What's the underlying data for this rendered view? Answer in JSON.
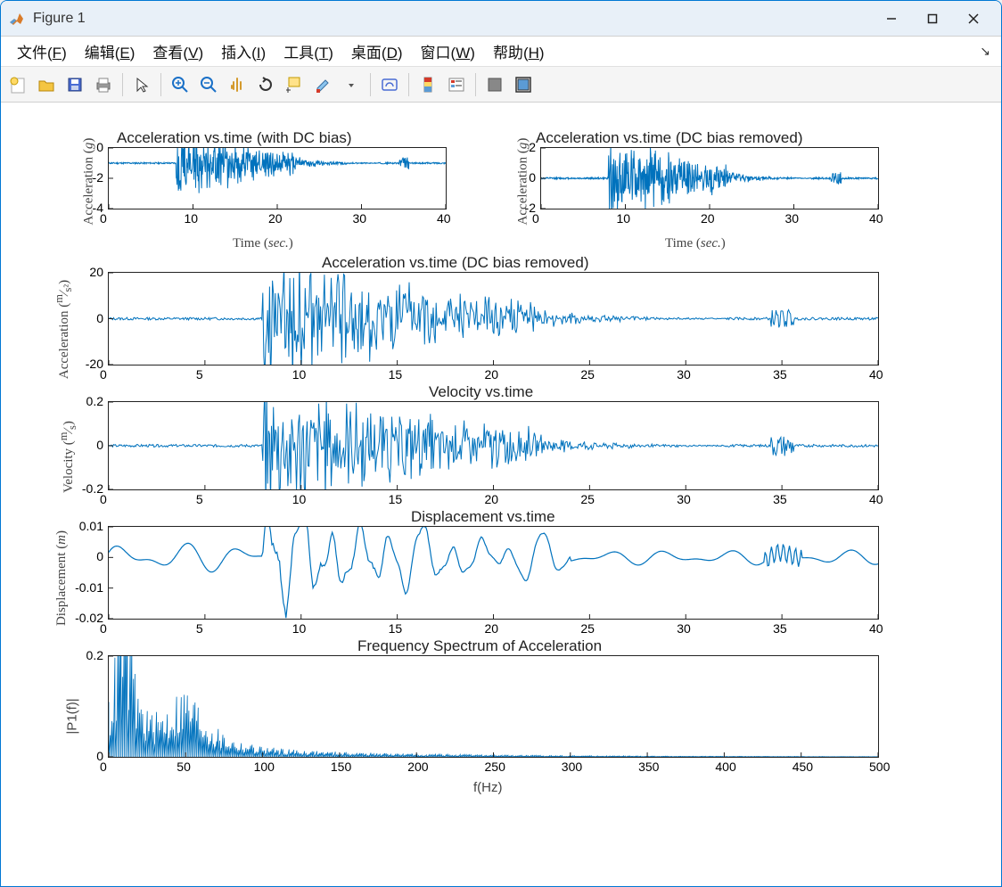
{
  "window": {
    "title": "Figure 1",
    "border_color": "#0078d4",
    "titlebar_bg": "#e8f0f8"
  },
  "menu": {
    "items": [
      {
        "label": "文件",
        "accel": "F"
      },
      {
        "label": "编辑",
        "accel": "E"
      },
      {
        "label": "查看",
        "accel": "V"
      },
      {
        "label": "插入",
        "accel": "I"
      },
      {
        "label": "工具",
        "accel": "T"
      },
      {
        "label": "桌面",
        "accel": "D"
      },
      {
        "label": "窗口",
        "accel": "W"
      },
      {
        "label": "帮助",
        "accel": "H"
      }
    ]
  },
  "charts": {
    "line_color": "#0072bd",
    "axis_color": "#222222",
    "tick_fontsize": 14,
    "title_fontsize": 17,
    "label_fontsize": 15,
    "font_family_serif": "Times New Roman, serif",
    "subplot1": {
      "title": "Acceleration vs.time (with DC bias)",
      "ylabel": "Acceleration (g)",
      "xlabel": "Time (sec.)",
      "xlim": [
        0,
        40
      ],
      "xticks": [
        0,
        10,
        20,
        30,
        40
      ],
      "ylim": [
        -4,
        0
      ],
      "yticks": [
        -4,
        -2,
        0
      ],
      "baseline": -1,
      "peaks_y": [
        -4,
        0,
        -3.8,
        -0.2,
        -3.5,
        0,
        -3,
        -0.5,
        -2.5,
        -0.5,
        -2,
        -0.7,
        -1.5,
        -0.8,
        -1.3,
        -0.9
      ],
      "burst_start": 8,
      "burst_end": 22,
      "blip_x": 35,
      "blip_amp": 0.4
    },
    "subplot2": {
      "title": "Acceleration vs.time (DC bias removed)",
      "ylabel": "Acceleration (g)",
      "xlabel": "Time (sec.)",
      "xlim": [
        0,
        40
      ],
      "xticks": [
        0,
        10,
        20,
        30,
        40
      ],
      "ylim": [
        -2,
        2
      ],
      "yticks": [
        -2,
        0,
        2
      ],
      "baseline": 0,
      "burst_start": 8,
      "burst_end": 22,
      "amp_max": 2.8,
      "blip_x": 35,
      "blip_amp": 0.4
    },
    "subplot3": {
      "title": "Acceleration vs.time (DC bias removed)",
      "ylabel": "Acceleration (m/s²)",
      "xlim": [
        0,
        40
      ],
      "xticks": [
        0,
        5,
        10,
        15,
        20,
        25,
        30,
        35,
        40
      ],
      "ylim": [
        -20,
        20
      ],
      "yticks": [
        -20,
        0,
        20
      ],
      "baseline": 0,
      "burst_start": 8,
      "burst_end": 22,
      "amp_max": 28,
      "blip_x": 35,
      "blip_amp": 4
    },
    "subplot4": {
      "title": "Velocity vs.time",
      "ylabel": "Velocity (m/s)",
      "xlim": [
        0,
        40
      ],
      "xticks": [
        0,
        5,
        10,
        15,
        20,
        25,
        30,
        35,
        40
      ],
      "ylim": [
        -0.2,
        0.2
      ],
      "yticks": [
        -0.2,
        0,
        0.2
      ],
      "baseline": 0,
      "burst_start": 8,
      "burst_end": 22,
      "amp_max": 0.3,
      "blip_x": 35,
      "blip_amp": 0.05
    },
    "subplot5": {
      "title": "Displacement vs.time",
      "ylabel": "Displacement (m)",
      "xlim": [
        0,
        40
      ],
      "xticks": [
        0,
        5,
        10,
        15,
        20,
        25,
        30,
        35,
        40
      ],
      "ylim": [
        -0.02,
        0.01
      ],
      "yticks": [
        -0.02,
        -0.01,
        0,
        0.01
      ],
      "baseline": 0
    },
    "subplot6": {
      "title": "Frequency Spectrum of Acceleration",
      "ylabel": "|P1(f)|",
      "xlabel": "f(Hz)",
      "xlim": [
        0,
        500
      ],
      "xticks": [
        0,
        50,
        100,
        150,
        200,
        250,
        300,
        350,
        400,
        450,
        500
      ],
      "ylim": [
        0,
        0.2
      ],
      "yticks": [
        0,
        0.2
      ],
      "peak_freq": 10,
      "peak_mag": 0.28
    }
  }
}
